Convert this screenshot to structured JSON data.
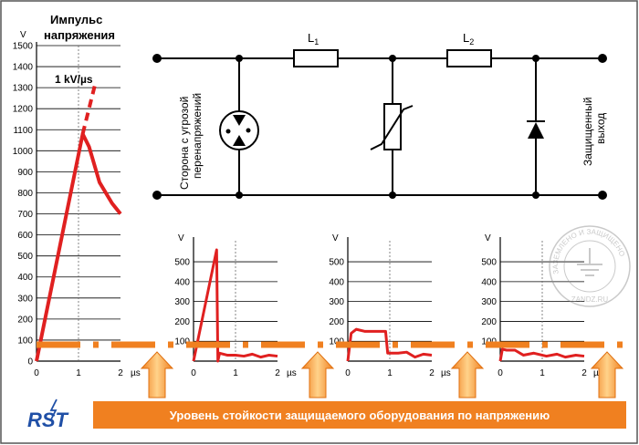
{
  "main_chart": {
    "title_line1": "Импульс",
    "title_line2": "напряжения",
    "y_unit": "V",
    "x_unit": "µs",
    "y_ticks": [
      "0",
      "100",
      "200",
      "300",
      "400",
      "500",
      "600",
      "700",
      "800",
      "900",
      "1000",
      "1100",
      "1200",
      "1300",
      "1400",
      "1500"
    ],
    "x_ticks": [
      "0",
      "1",
      "2"
    ],
    "slope_label": "1 kV/µs",
    "series": [
      {
        "x": 0,
        "y": 0
      },
      {
        "x": 1.1,
        "y": 1080
      },
      {
        "x": 1.25,
        "y": 1020
      },
      {
        "x": 1.5,
        "y": 850
      },
      {
        "x": 1.8,
        "y": 750
      },
      {
        "x": 2,
        "y": 700
      }
    ],
    "extrapolation": [
      {
        "x": 1.1,
        "y": 1080
      },
      {
        "x": 1.4,
        "y": 1320
      }
    ]
  },
  "small_charts": [
    {
      "y_unit": "V",
      "x_unit": "µs",
      "y_ticks": [
        "100",
        "200",
        "300",
        "400",
        "500"
      ],
      "x_ticks": [
        "0",
        "1",
        "2"
      ],
      "series": [
        {
          "x": 0,
          "y": 0
        },
        {
          "x": 0.55,
          "y": 560
        },
        {
          "x": 0.58,
          "y": 0
        },
        {
          "x": 0.62,
          "y": 40
        },
        {
          "x": 0.8,
          "y": 30
        },
        {
          "x": 1.0,
          "y": 30
        },
        {
          "x": 1.2,
          "y": 25
        },
        {
          "x": 1.4,
          "y": 35
        },
        {
          "x": 1.6,
          "y": 20
        },
        {
          "x": 1.8,
          "y": 30
        },
        {
          "x": 2.0,
          "y": 25
        }
      ]
    },
    {
      "y_unit": "V",
      "x_unit": "µs",
      "y_ticks": [
        "100",
        "200",
        "300",
        "400",
        "500"
      ],
      "x_ticks": [
        "0",
        "1",
        "2"
      ],
      "series": [
        {
          "x": 0,
          "y": 0
        },
        {
          "x": 0.08,
          "y": 140
        },
        {
          "x": 0.2,
          "y": 160
        },
        {
          "x": 0.4,
          "y": 150
        },
        {
          "x": 0.9,
          "y": 150
        },
        {
          "x": 0.95,
          "y": 40
        },
        {
          "x": 1.2,
          "y": 40
        },
        {
          "x": 1.4,
          "y": 45
        },
        {
          "x": 1.6,
          "y": 20
        },
        {
          "x": 1.8,
          "y": 35
        },
        {
          "x": 2.0,
          "y": 30
        }
      ]
    },
    {
      "y_unit": "V",
      "x_unit": "µs",
      "y_ticks": [
        "100",
        "200",
        "300",
        "400",
        "500"
      ],
      "x_ticks": [
        "0",
        "1",
        "2"
      ],
      "series": [
        {
          "x": 0,
          "y": 0
        },
        {
          "x": 0.05,
          "y": 60
        },
        {
          "x": 0.15,
          "y": 55
        },
        {
          "x": 0.35,
          "y": 55
        },
        {
          "x": 0.55,
          "y": 30
        },
        {
          "x": 0.8,
          "y": 40
        },
        {
          "x": 1.1,
          "y": 25
        },
        {
          "x": 1.35,
          "y": 35
        },
        {
          "x": 1.55,
          "y": 20
        },
        {
          "x": 1.8,
          "y": 30
        },
        {
          "x": 2.0,
          "y": 25
        }
      ]
    }
  ],
  "circuit": {
    "left_label_line1": "Сторона с угрозой",
    "left_label_line2": "перенапряжений",
    "right_label_line1": "Защищенный",
    "right_label_line2": "выход",
    "inductor1": "L",
    "inductor1_sub": "1",
    "inductor2": "L",
    "inductor2_sub": "2"
  },
  "threshold": {
    "value": 80,
    "color": "#f08020"
  },
  "banner": {
    "text": "Уровень стойкости защищаемого оборудования по напряжению",
    "color": "#f08020"
  },
  "logo": {
    "text": "RST"
  },
  "watermark": {
    "text": "ЗАЗЕМЛЕНО И ЗАЩИЩЕНО",
    "site": "ZANDZ.RU"
  },
  "colors": {
    "curve": "#e02020",
    "threshold": "#f08020",
    "arrow": "#f7a830",
    "frame": "#000000"
  }
}
